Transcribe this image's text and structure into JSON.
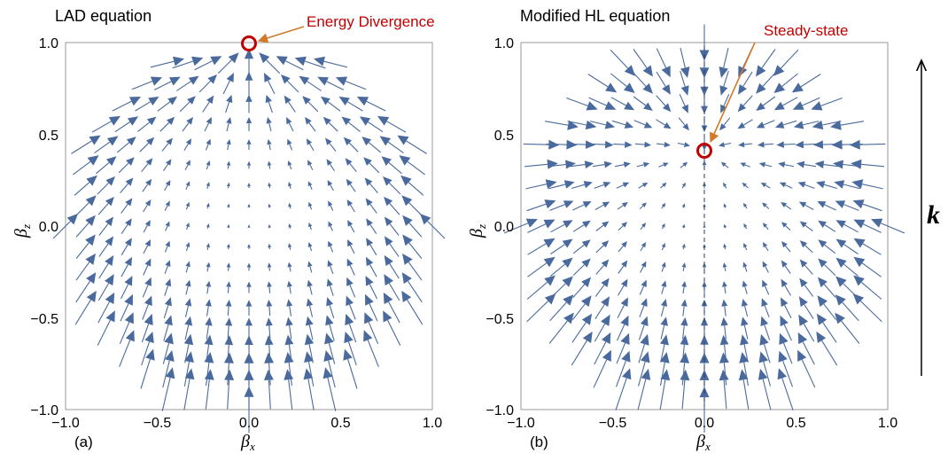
{
  "colors": {
    "arrow": "#4a6a9e",
    "frame": "#9a9a9a",
    "marker": "#c00000",
    "annotation_arrow": "#d07a2a",
    "annotation_text": "#c00000"
  },
  "chart_data": [
    {
      "type": "vector-field",
      "title": "LAD equation",
      "panel_label": "(a)",
      "xlabel": "β",
      "xlabel_sub": "x",
      "ylabel": "β",
      "ylabel_sub": "z",
      "xlim": [
        -1.0,
        1.0
      ],
      "ylim": [
        -1.0,
        1.0
      ],
      "xticks": [
        "−1.0",
        "−0.5",
        "0.0",
        "0.5",
        "1.0"
      ],
      "yticks": [
        "−1.0",
        "−0.5",
        "0.0",
        "0.5",
        "1.0"
      ],
      "field": "Lorentz-Abraham-Dirac flow inside the unit disk; arrows point toward (0, 1)",
      "marker": {
        "x": 0.0,
        "y": 1.0,
        "label": "Energy Divergence"
      }
    },
    {
      "type": "vector-field",
      "title": "Modified HL equation",
      "panel_label": "(b)",
      "xlabel": "β",
      "xlabel_sub": "x",
      "ylabel": "β",
      "ylabel_sub": "z",
      "xlim": [
        -1.0,
        1.0
      ],
      "ylim": [
        -1.0,
        1.0
      ],
      "xticks": [
        "−1.0",
        "−0.5",
        "0.0",
        "0.5",
        "1.0"
      ],
      "yticks": [
        "−1.0",
        "−0.5",
        "0.0",
        "0.5",
        "1.0"
      ],
      "field": "Modified Hartemann-Luhmann flow inside the unit disk; arrows converge on a steady state",
      "marker": {
        "x": 0.0,
        "y": 0.42,
        "label": "Steady-state"
      }
    }
  ],
  "direction_indicator": {
    "label": "k"
  }
}
